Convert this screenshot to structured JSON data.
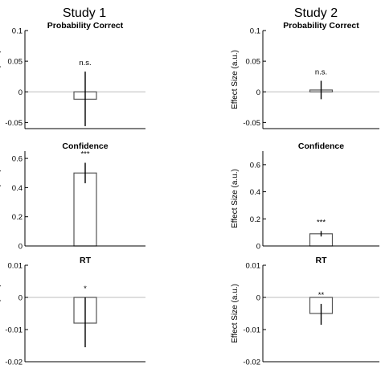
{
  "header": {
    "study1": "Study 1",
    "study2": "Study 2"
  },
  "chart_data": [
    {
      "type": "bar",
      "study": "Study 1",
      "title": "Probability Correct",
      "ylabel": "Effect Size (a.u.)",
      "ylim": [
        -0.06,
        0.1
      ],
      "yticks": [
        -0.05,
        0,
        0.05,
        0.1
      ],
      "ytick_labels": [
        "-0.05",
        "0",
        "0.05",
        "0.1"
      ],
      "value": -0.012,
      "err_low": -0.056,
      "err_high": 0.033,
      "significance": "n.s.",
      "zero_line": true
    },
    {
      "type": "bar",
      "study": "Study 1",
      "title": "Confidence",
      "ylabel": "Effect Size (a.u.)",
      "ylim": [
        0,
        0.65
      ],
      "yticks": [
        0,
        0.2,
        0.4,
        0.6
      ],
      "ytick_labels": [
        "0",
        "0.2",
        "0.4",
        "0.6"
      ],
      "value": 0.5,
      "err_low": 0.43,
      "err_high": 0.57,
      "significance": "***",
      "zero_line": false
    },
    {
      "type": "bar",
      "study": "Study 1",
      "title": "RT",
      "ylabel": "Effect Size (a.u.)",
      "ylim": [
        -0.02,
        0.01
      ],
      "yticks": [
        -0.02,
        -0.01,
        0,
        0.01
      ],
      "ytick_labels": [
        "-0.02",
        "-0.01",
        "0",
        "0.01"
      ],
      "value": -0.008,
      "err_low": -0.0155,
      "err_high": 0.0,
      "significance": "*",
      "zero_line": true
    },
    {
      "type": "bar",
      "study": "Study 2",
      "title": "Probability Correct",
      "ylabel": "Effect Size (a.u.)",
      "ylim": [
        -0.06,
        0.1
      ],
      "yticks": [
        -0.05,
        0,
        0.05,
        0.1
      ],
      "ytick_labels": [
        "-0.05",
        "0",
        "0.05",
        "0.1"
      ],
      "value": 0.003,
      "err_low": -0.012,
      "err_high": 0.018,
      "significance": "n.s.",
      "zero_line": true
    },
    {
      "type": "bar",
      "study": "Study 2",
      "title": "Confidence",
      "ylabel": "Effect Size (a.u.)",
      "ylim": [
        0,
        0.7
      ],
      "yticks": [
        0,
        0.2,
        0.4,
        0.6
      ],
      "ytick_labels": [
        "0",
        "0.2",
        "0.4",
        "0.6"
      ],
      "value": 0.09,
      "err_low": 0.07,
      "err_high": 0.11,
      "significance": "***",
      "zero_line": false
    },
    {
      "type": "bar",
      "study": "Study 2",
      "title": "RT",
      "ylabel": "Effect Size (a.u.)",
      "ylim": [
        -0.02,
        0.01
      ],
      "yticks": [
        -0.02,
        -0.01,
        0,
        0.01
      ],
      "ytick_labels": [
        "-0.02",
        "-0.01",
        "0",
        "0.01"
      ],
      "value": -0.005,
      "err_low": -0.0085,
      "err_high": -0.002,
      "significance": "**",
      "zero_line": true
    }
  ]
}
